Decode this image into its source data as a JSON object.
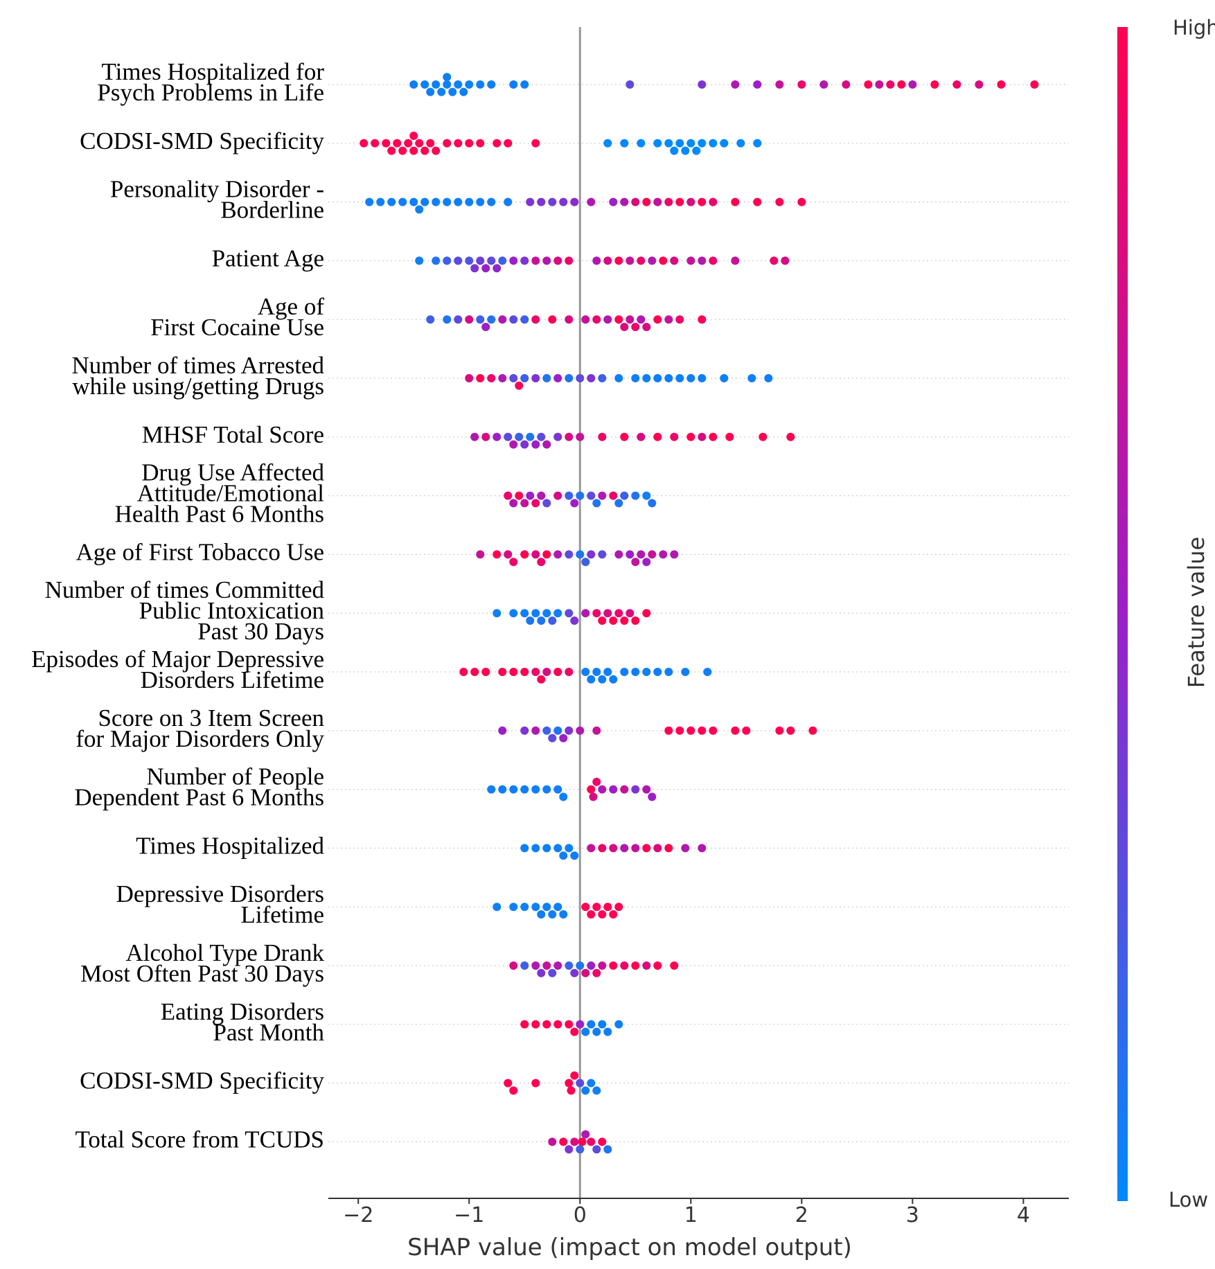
{
  "chart_data": {
    "type": "beeswarm",
    "xlabel": "SHAP value (impact on model output)",
    "xlim": [
      -2.27,
      4.41
    ],
    "xticks": [
      {
        "value": -2,
        "label": "−2"
      },
      {
        "value": -1,
        "label": "−1"
      },
      0,
      1,
      2,
      3,
      4
    ],
    "zero_line": true,
    "grid": true,
    "colormap": [
      "#008afb",
      "#9c1fc8",
      "#ff0052"
    ],
    "colorbar": {
      "label": "Feature value",
      "high": "High",
      "low": "Low"
    },
    "series": [
      {
        "name": "Times Hospitalized for\nPsych Problems in Life",
        "values": [
          -1.5,
          -1.4,
          -1.35,
          -1.3,
          -1.25,
          -1.2,
          -1.2,
          -1.15,
          -1.1,
          -1.05,
          -1.0,
          -0.9,
          -0.8,
          -0.6,
          -0.5,
          0.45,
          1.1,
          1.4,
          1.6,
          1.8,
          2.0,
          2.2,
          2.4,
          2.6,
          2.7,
          2.8,
          2.9,
          3.0,
          3.2,
          3.4,
          3.6,
          3.8,
          4.1
        ],
        "feature_values": [
          0.05,
          0.05,
          0.05,
          0.05,
          0.05,
          0.05,
          0.05,
          0.05,
          0.05,
          0.05,
          0.05,
          0.05,
          0.05,
          0.05,
          0.05,
          0.3,
          0.4,
          0.6,
          0.5,
          0.7,
          0.9,
          0.6,
          0.8,
          1,
          0.7,
          0.9,
          1,
          0.6,
          1,
          0.9,
          0.8,
          1,
          1
        ]
      },
      {
        "name": "CODSI-SMD Specificity",
        "values": [
          -1.95,
          -1.85,
          -1.75,
          -1.7,
          -1.65,
          -1.6,
          -1.55,
          -1.5,
          -1.5,
          -1.45,
          -1.4,
          -1.35,
          -1.3,
          -1.2,
          -1.1,
          -1.0,
          -0.9,
          -0.75,
          -0.65,
          -0.4,
          0.25,
          0.4,
          0.55,
          0.7,
          0.8,
          0.85,
          0.9,
          0.95,
          1.0,
          1.05,
          1.1,
          1.2,
          1.3,
          1.45,
          1.6
        ],
        "feature_values": [
          1,
          1,
          1,
          1,
          1,
          1,
          1,
          1,
          1,
          1,
          1,
          1,
          1,
          1,
          1,
          1,
          1,
          1,
          1,
          1,
          0,
          0,
          0,
          0,
          0,
          0,
          0,
          0,
          0,
          0,
          0,
          0,
          0,
          0,
          0
        ]
      },
      {
        "name": "Personality Disorder -\nBorderline",
        "values": [
          -1.9,
          -1.8,
          -1.7,
          -1.6,
          -1.5,
          -1.45,
          -1.4,
          -1.3,
          -1.2,
          -1.1,
          -1.0,
          -0.9,
          -0.8,
          -0.65,
          -0.45,
          -0.35,
          -0.25,
          -0.15,
          -0.05,
          0.1,
          0.3,
          0.4,
          0.5,
          0.6,
          0.7,
          0.8,
          0.9,
          1.0,
          1.1,
          1.2,
          1.4,
          1.6,
          1.8,
          2.0
        ],
        "feature_values": [
          0.05,
          0.05,
          0.05,
          0.05,
          0.05,
          0.05,
          0.05,
          0.05,
          0.05,
          0.05,
          0.05,
          0.05,
          0.05,
          0.05,
          0.4,
          0.4,
          0.35,
          0.4,
          0.45,
          0.6,
          0.5,
          0.6,
          0.8,
          1,
          0.7,
          0.9,
          1,
          0.8,
          1,
          0.9,
          1,
          1,
          1,
          1
        ]
      },
      {
        "name": "Patient Age",
        "values": [
          -1.45,
          -1.3,
          -1.2,
          -1.1,
          -1.0,
          -0.95,
          -0.9,
          -0.85,
          -0.8,
          -0.75,
          -0.7,
          -0.6,
          -0.5,
          -0.4,
          -0.3,
          -0.2,
          -0.1,
          0.15,
          0.25,
          0.35,
          0.45,
          0.55,
          0.65,
          0.75,
          0.85,
          1.0,
          1.1,
          1.2,
          1.4,
          1.75,
          1.85
        ],
        "feature_values": [
          0.05,
          0.1,
          0.2,
          0.3,
          0.25,
          0.4,
          0.35,
          0.5,
          0.3,
          0.45,
          0.2,
          0.5,
          0.4,
          0.7,
          0.6,
          0.8,
          0.9,
          0.6,
          0.8,
          1,
          0.7,
          0.9,
          0.6,
          1,
          0.8,
          0.7,
          0.6,
          0.9,
          0.7,
          0.9,
          0.8
        ]
      },
      {
        "name": "Age of\nFirst Cocaine Use",
        "values": [
          -1.35,
          -1.2,
          -1.1,
          -1.0,
          -0.9,
          -0.85,
          -0.8,
          -0.7,
          -0.6,
          -0.5,
          -0.4,
          -0.25,
          -0.1,
          0.05,
          0.15,
          0.25,
          0.35,
          0.4,
          0.45,
          0.5,
          0.55,
          0.6,
          0.7,
          0.8,
          0.9,
          1.1
        ],
        "feature_values": [
          0.2,
          0.1,
          0.3,
          0.8,
          0.2,
          0.5,
          0.1,
          0.6,
          0.3,
          0.2,
          0.9,
          1,
          0.8,
          0.7,
          0.9,
          0.6,
          1,
          0.8,
          0.7,
          0.9,
          0.6,
          0.8,
          1,
          0.7,
          0.9,
          1
        ]
      },
      {
        "name": "Number of times Arrested\nwhile using/getting Drugs",
        "values": [
          -1.0,
          -0.9,
          -0.8,
          -0.7,
          -0.6,
          -0.55,
          -0.5,
          -0.4,
          -0.3,
          -0.2,
          -0.1,
          0.0,
          0.1,
          0.2,
          0.35,
          0.5,
          0.6,
          0.7,
          0.8,
          0.9,
          1.0,
          1.1,
          1.3,
          1.55,
          1.7
        ],
        "feature_values": [
          0.8,
          1,
          0.9,
          0.6,
          0.3,
          1,
          0.2,
          0.4,
          0.1,
          0.5,
          0.1,
          0.3,
          0.4,
          0.2,
          0.05,
          0.05,
          0.05,
          0.05,
          0.05,
          0.05,
          0.05,
          0.05,
          0.05,
          0.05,
          0.05
        ]
      },
      {
        "name": "MHSF Total Score",
        "values": [
          -0.95,
          -0.85,
          -0.75,
          -0.65,
          -0.6,
          -0.55,
          -0.5,
          -0.45,
          -0.4,
          -0.35,
          -0.3,
          -0.2,
          -0.1,
          0.0,
          0.2,
          0.4,
          0.55,
          0.7,
          0.85,
          1.0,
          1.1,
          1.2,
          1.35,
          1.65,
          1.9
        ],
        "feature_values": [
          0.6,
          0.8,
          0.5,
          0.3,
          0.6,
          0.2,
          0.4,
          0.1,
          0.5,
          0.3,
          0.6,
          0.4,
          0.8,
          0.7,
          0.9,
          1,
          0.8,
          1,
          0.9,
          1,
          0.8,
          1,
          1,
          1,
          1
        ]
      },
      {
        "name": "Drug Use Affected\nAttitude/Emotional\nHealth Past 6 Months",
        "values": [
          -0.65,
          -0.6,
          -0.55,
          -0.5,
          -0.45,
          -0.4,
          -0.35,
          -0.3,
          -0.2,
          -0.1,
          -0.05,
          0.0,
          0.1,
          0.15,
          0.2,
          0.3,
          0.35,
          0.4,
          0.5,
          0.6,
          0.65
        ],
        "feature_values": [
          0.9,
          0.6,
          1,
          0.7,
          0.5,
          0.9,
          0.6,
          0.3,
          0.8,
          0.2,
          0.5,
          0.1,
          0.3,
          0.1,
          0.6,
          0.9,
          0.1,
          0.2,
          0.1,
          0.05,
          0.1
        ]
      },
      {
        "name": "Age of First Tobacco Use",
        "values": [
          -0.9,
          -0.75,
          -0.65,
          -0.6,
          -0.5,
          -0.4,
          -0.35,
          -0.3,
          -0.2,
          -0.1,
          0.0,
          0.05,
          0.1,
          0.2,
          0.35,
          0.45,
          0.5,
          0.55,
          0.6,
          0.65,
          0.75,
          0.85
        ],
        "feature_values": [
          0.7,
          1,
          0.8,
          0.9,
          1,
          0.8,
          0.9,
          1,
          0.6,
          0.3,
          0.1,
          0.2,
          0.4,
          0.3,
          0.6,
          0.5,
          0.7,
          0.6,
          0.5,
          0.7,
          0.6,
          0.6
        ]
      },
      {
        "name": "Number of times Committed\nPublic Intoxication\nPast 30 Days",
        "values": [
          -0.75,
          -0.6,
          -0.5,
          -0.45,
          -0.4,
          -0.35,
          -0.3,
          -0.25,
          -0.2,
          -0.1,
          -0.05,
          0.05,
          0.15,
          0.2,
          0.25,
          0.3,
          0.35,
          0.4,
          0.45,
          0.5,
          0.6
        ],
        "feature_values": [
          0.05,
          0.05,
          0.05,
          0.1,
          0.05,
          0.1,
          0.05,
          0.2,
          0.05,
          0.3,
          0.4,
          0.6,
          0.9,
          1,
          0.8,
          1,
          0.9,
          1,
          0.8,
          1,
          1
        ]
      },
      {
        "name": "Episodes of Major Depressive\nDisorders Lifetime",
        "values": [
          -1.05,
          -0.95,
          -0.85,
          -0.7,
          -0.6,
          -0.5,
          -0.4,
          -0.35,
          -0.3,
          -0.2,
          -0.1,
          0.05,
          0.1,
          0.15,
          0.2,
          0.25,
          0.3,
          0.4,
          0.5,
          0.6,
          0.7,
          0.8,
          0.95,
          1.15
        ],
        "feature_values": [
          1,
          1,
          1,
          1,
          1,
          1,
          0.9,
          1,
          0.8,
          1,
          0.9,
          0.05,
          0.05,
          0.05,
          0.05,
          0.05,
          0.05,
          0.05,
          0.05,
          0.05,
          0.05,
          0.05,
          0.05,
          0.05
        ]
      },
      {
        "name": "Score on 3 Item Screen\nfor Major Disorders Only",
        "values": [
          -0.7,
          -0.5,
          -0.4,
          -0.3,
          -0.25,
          -0.2,
          -0.15,
          -0.1,
          0.0,
          0.15,
          0.8,
          0.9,
          1.0,
          1.1,
          1.2,
          1.4,
          1.5,
          1.8,
          1.9,
          2.1
        ],
        "feature_values": [
          0.5,
          0.4,
          0.6,
          0.2,
          0.3,
          0.1,
          0.5,
          0.4,
          0.6,
          0.7,
          1,
          1,
          1,
          1,
          1,
          1,
          1,
          1,
          1,
          1
        ]
      },
      {
        "name": "Number of People\nDependent Past 6 Months",
        "values": [
          -0.8,
          -0.7,
          -0.6,
          -0.5,
          -0.4,
          -0.3,
          -0.2,
          -0.15,
          0.1,
          0.12,
          0.15,
          0.2,
          0.3,
          0.4,
          0.5,
          0.6,
          0.65
        ],
        "feature_values": [
          0.05,
          0.05,
          0.05,
          0.05,
          0.05,
          0.05,
          0.05,
          0.05,
          1,
          0.8,
          0.9,
          0.6,
          0.5,
          0.7,
          0.4,
          0.6,
          0.5
        ]
      },
      {
        "name": "Times Hospitalized",
        "values": [
          -0.5,
          -0.4,
          -0.3,
          -0.2,
          -0.15,
          -0.1,
          -0.05,
          0.1,
          0.2,
          0.3,
          0.4,
          0.5,
          0.6,
          0.7,
          0.8,
          0.95,
          1.1
        ],
        "feature_values": [
          0.05,
          0.05,
          0.05,
          0.05,
          0.05,
          0.05,
          0.05,
          0.7,
          0.9,
          0.8,
          0.6,
          0.7,
          1,
          0.8,
          1,
          0.6,
          0.6
        ]
      },
      {
        "name": "Depressive Disorders\nLifetime",
        "values": [
          -0.75,
          -0.6,
          -0.5,
          -0.4,
          -0.35,
          -0.3,
          -0.25,
          -0.2,
          -0.15,
          0.05,
          0.1,
          0.15,
          0.2,
          0.25,
          0.3,
          0.35
        ],
        "feature_values": [
          0.05,
          0.05,
          0.05,
          0.05,
          0.05,
          0.05,
          0.05,
          0.05,
          0.05,
          1,
          1,
          1,
          1,
          1,
          1,
          1
        ]
      },
      {
        "name": "Alcohol Type Drank\nMost Often Past 30 Days",
        "values": [
          -0.6,
          -0.5,
          -0.4,
          -0.35,
          -0.3,
          -0.25,
          -0.2,
          -0.1,
          -0.05,
          0.0,
          0.05,
          0.1,
          0.15,
          0.2,
          0.3,
          0.4,
          0.5,
          0.6,
          0.7,
          0.85
        ],
        "feature_values": [
          0.8,
          0.2,
          0.6,
          0.4,
          0.7,
          0.3,
          0.6,
          0.2,
          0.4,
          0.1,
          0.8,
          0.5,
          0.9,
          0.7,
          1,
          0.9,
          1,
          0.8,
          1,
          1
        ]
      },
      {
        "name": "Eating Disorders\nPast Month",
        "values": [
          -0.5,
          -0.4,
          -0.3,
          -0.2,
          -0.1,
          -0.05,
          0.0,
          0.05,
          0.1,
          0.15,
          0.2,
          0.25,
          0.35
        ],
        "feature_values": [
          1,
          1,
          1,
          1,
          1,
          1,
          0.5,
          0.05,
          0.05,
          0.05,
          0.05,
          0.05,
          0.05
        ]
      },
      {
        "name": "CODSI-SMD Specificity",
        "values": [
          -0.65,
          -0.6,
          -0.4,
          -0.1,
          -0.08,
          -0.05,
          0.0,
          0.05,
          0.1,
          0.15
        ],
        "feature_values": [
          1,
          1,
          1,
          1,
          1,
          1,
          0.3,
          0.05,
          0.05,
          0.05
        ]
      },
      {
        "name": "Total Score from TCUDS",
        "values": [
          -0.25,
          -0.15,
          -0.1,
          -0.05,
          0.0,
          0.02,
          0.05,
          0.1,
          0.15,
          0.2,
          0.25
        ],
        "feature_values": [
          0.7,
          1,
          0.4,
          0.8,
          0.2,
          1,
          0.6,
          0.9,
          0.3,
          1,
          0.1
        ]
      }
    ]
  }
}
